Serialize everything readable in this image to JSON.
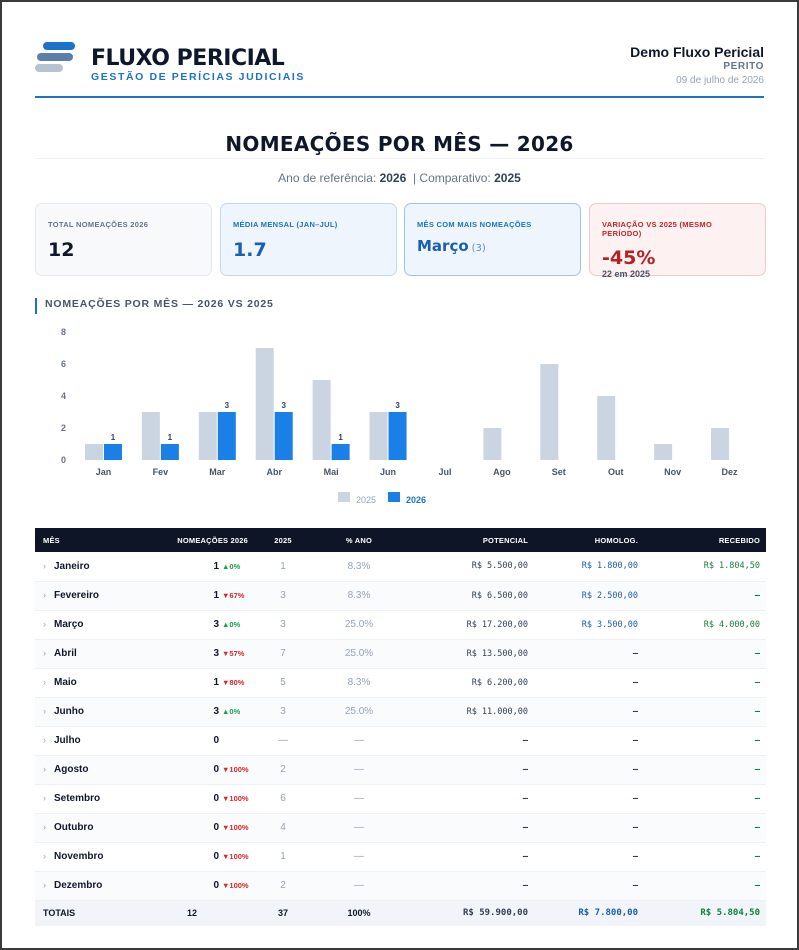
{
  "header": {
    "brand": "FLUXO PERICIAL",
    "tagline": "GESTÃO DE PERÍCIAS JUDICIAIS",
    "user_name": "Demo Fluxo Pericial",
    "user_role": "PERITO",
    "date": "09 de julho de 2026"
  },
  "page": {
    "title": "NOMEAÇÕES POR MÊS — 2026",
    "ref_label": "Ano de referência:",
    "ref_year": "2026",
    "cmp_label": "| Comparativo:",
    "cmp_year": "2025"
  },
  "cards": {
    "total": {
      "label": "TOTAL NOMEAÇÕES 2026",
      "value": "12"
    },
    "media": {
      "label": "MÉDIA MENSAL (JAN–JUL)",
      "value": "1.7"
    },
    "top": {
      "label": "MÊS COM MAIS NOMEAÇÕES",
      "value": "Março",
      "count": "(3)"
    },
    "var": {
      "label": "VARIAÇÃO VS 2025 (MESMO PERÍODO)",
      "value": "-45%",
      "sub": "22 em 2025"
    }
  },
  "chart_title": "NOMEAÇÕES POR MÊS — 2026 VS 2025",
  "chart_data": {
    "type": "bar",
    "categories": [
      "Jan",
      "Fev",
      "Mar",
      "Abr",
      "Mai",
      "Jun",
      "Jul",
      "Ago",
      "Set",
      "Out",
      "Nov",
      "Dez"
    ],
    "series": [
      {
        "name": "2025",
        "color": "#cbd5e1",
        "values": [
          1,
          3,
          3,
          7,
          5,
          3,
          0,
          2,
          6,
          4,
          1,
          2
        ]
      },
      {
        "name": "2026",
        "color": "#1a7fe6",
        "values": [
          1,
          1,
          3,
          3,
          1,
          3,
          0,
          null,
          null,
          null,
          null,
          null
        ]
      }
    ],
    "yticks": [
      "0",
      "2",
      "4",
      "6",
      "8"
    ],
    "ylim": [
      0,
      8
    ],
    "legend": "bottom",
    "grid": false
  },
  "table": {
    "headers": [
      "MÊS",
      "NOMEAÇÕES 2026",
      "2025",
      "% ANO",
      "POTENCIAL",
      "HOMOLOG.",
      "RECEBIDO"
    ],
    "rows": [
      {
        "month": "Janeiro",
        "n": "1",
        "delta": "▲0%",
        "dir": "up",
        "y25": "1",
        "pct": "8.3%",
        "pot": "R$ 5.500,00",
        "hom": "R$ 1.800,00",
        "rec": "R$ 1.804,50"
      },
      {
        "month": "Fevereiro",
        "n": "1",
        "delta": "▼67%",
        "dir": "dn",
        "y25": "3",
        "pct": "8.3%",
        "pot": "R$ 6.500,00",
        "hom": "R$ 2.500,00",
        "rec": "–"
      },
      {
        "month": "Março",
        "n": "3",
        "delta": "▲0%",
        "dir": "up",
        "y25": "3",
        "pct": "25.0%",
        "pot": "R$ 17.200,00",
        "hom": "R$ 3.500,00",
        "rec": "R$ 4.000,00"
      },
      {
        "month": "Abril",
        "n": "3",
        "delta": "▼57%",
        "dir": "dn",
        "y25": "7",
        "pct": "25.0%",
        "pot": "R$ 13.500,00",
        "hom": "–",
        "rec": "–"
      },
      {
        "month": "Maio",
        "n": "1",
        "delta": "▼80%",
        "dir": "dn",
        "y25": "5",
        "pct": "8.3%",
        "pot": "R$ 6.200,00",
        "hom": "–",
        "rec": "–"
      },
      {
        "month": "Junho",
        "n": "3",
        "delta": "▲0%",
        "dir": "up",
        "y25": "3",
        "pct": "25.0%",
        "pot": "R$ 11.000,00",
        "hom": "–",
        "rec": "–"
      },
      {
        "month": "Julho",
        "n": "0",
        "delta": "",
        "dir": "",
        "y25": "—",
        "pct": "—",
        "pot": "–",
        "hom": "–",
        "rec": "–"
      },
      {
        "month": "Agosto",
        "n": "0",
        "delta": "▼100%",
        "dir": "dn",
        "y25": "2",
        "pct": "—",
        "pot": "–",
        "hom": "–",
        "rec": "–"
      },
      {
        "month": "Setembro",
        "n": "0",
        "delta": "▼100%",
        "dir": "dn",
        "y25": "6",
        "pct": "—",
        "pot": "–",
        "hom": "–",
        "rec": "–"
      },
      {
        "month": "Outubro",
        "n": "0",
        "delta": "▼100%",
        "dir": "dn",
        "y25": "4",
        "pct": "—",
        "pot": "–",
        "hom": "–",
        "rec": "–"
      },
      {
        "month": "Novembro",
        "n": "0",
        "delta": "▼100%",
        "dir": "dn",
        "y25": "1",
        "pct": "—",
        "pot": "–",
        "hom": "–",
        "rec": "–"
      },
      {
        "month": "Dezembro",
        "n": "0",
        "delta": "▼100%",
        "dir": "dn",
        "y25": "2",
        "pct": "—",
        "pot": "–",
        "hom": "–",
        "rec": "–"
      }
    ],
    "totals": {
      "label": "TOTAIS",
      "n": "12",
      "y25": "37",
      "pct": "100%",
      "pot": "R$ 59.900,00",
      "hom": "R$ 7.800,00",
      "rec": "R$ 5.804,50"
    }
  }
}
